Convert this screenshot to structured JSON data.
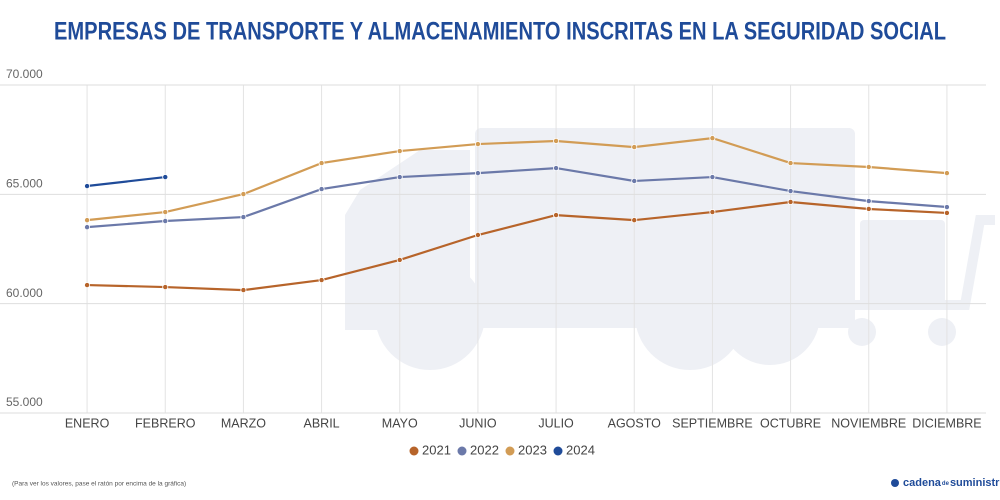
{
  "chart_data": {
    "type": "line",
    "title": "EMPRESAS DE TRANSPORTE Y ALMACENAMIENTO INSCRITAS EN LA SEGURIDAD SOCIAL",
    "categories": [
      "ENERO",
      "FEBRERO",
      "MARZO",
      "ABRIL",
      "MAYO",
      "JUNIO",
      "JULIO",
      "AGOSTO",
      "SEPTIEMBRE",
      "OCTUBRE",
      "NOVIEMBRE",
      "DICIEMBRE"
    ],
    "series": [
      {
        "name": "2021",
        "color": "#b7642a",
        "values": [
          60850,
          60760,
          60620,
          61080,
          62000,
          63140,
          64050,
          63820,
          64190,
          64650,
          64330,
          64150
        ]
      },
      {
        "name": "2022",
        "color": "#6b79a9",
        "values": [
          63500,
          63780,
          63960,
          65240,
          65790,
          65970,
          66200,
          65610,
          65790,
          65150,
          64690,
          64420
        ]
      },
      {
        "name": "2023",
        "color": "#d29c55",
        "values": [
          63820,
          64190,
          65010,
          66430,
          66980,
          67300,
          67440,
          67160,
          67570,
          66430,
          66250,
          65970
        ]
      },
      {
        "name": "2024",
        "color": "#1f4b99",
        "values": [
          65380,
          65790,
          null,
          null,
          null,
          null,
          null,
          null,
          null,
          null,
          null,
          null
        ]
      }
    ],
    "ylim": [
      55000,
      70000
    ],
    "yticks": [
      {
        "value": 55000,
        "label": "55.000"
      },
      {
        "value": 60000,
        "label": "60.000"
      },
      {
        "value": 65000,
        "label": "65.000"
      },
      {
        "value": 70000,
        "label": "70.000"
      }
    ],
    "grid": true,
    "legend": "bottom",
    "note": "(Para ver los valores, pase el ratón por encima de la gráfica)",
    "brand": [
      "cadena",
      "de",
      "suministro"
    ]
  }
}
